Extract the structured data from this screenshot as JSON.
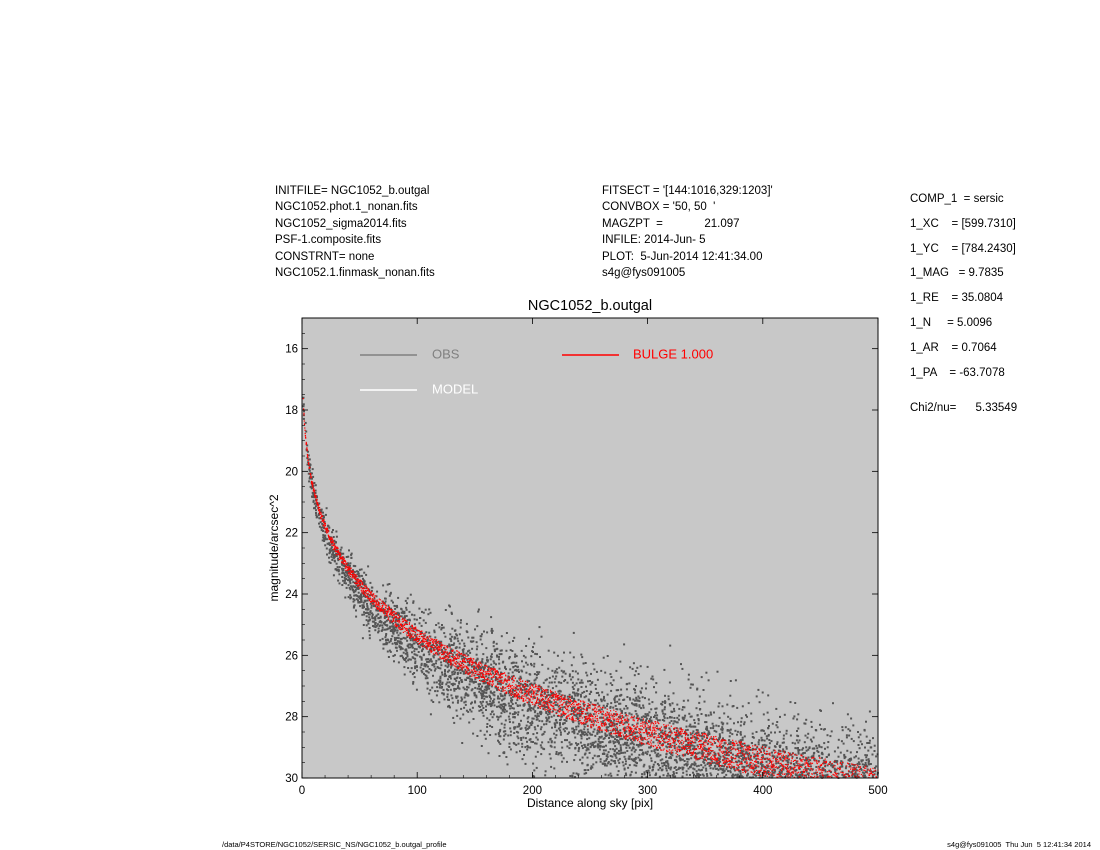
{
  "header_left": [
    "INITFILE= NGC1052_b.outgal",
    "NGC1052.phot.1_nonan.fits",
    "NGC1052_sigma2014.fits",
    "PSF-1.composite.fits",
    "CONSTRNT= none",
    "NGC1052.1.finmask_nonan.fits"
  ],
  "header_mid": [
    "FITSECT = '[144:1016,329:1203]'",
    "CONVBOX = '50, 50  '",
    "MAGZPT  =             21.097",
    "INFILE: 2014-Jun- 5",
    "PLOT:  5-Jun-2014 12:41:34.00",
    "s4g@fys091005"
  ],
  "params": [
    "COMP_1  = sersic",
    "1_XC    = [599.7310]",
    "1_YC    = [784.2430]",
    "1_MAG   = 9.7835",
    "1_RE    = 35.0804",
    "1_N     = 5.0096",
    "1_AR    = 0.7064",
    "1_PA    = -63.7078"
  ],
  "chi2": "Chi2/nu=      5.33549",
  "footer_left": "/data/P4STORE/NGC1052/SERSIC_NS/NGC1052_b.outgal_profile",
  "footer_right": "s4g@fys091005  Thu Jun  5 12:41:34 2014",
  "colors": {
    "plot_background": "#c8c8c8",
    "obs": "#555555",
    "obs_legend": "#808080",
    "model": "#ffffff",
    "bulge": "#ff0000"
  },
  "chart_data": {
    "type": "scatter",
    "title": "NGC1052_b.outgal",
    "xlabel": "Distance along sky [pix]",
    "ylabel": "magnitude/arcsec^2",
    "xlim": [
      0,
      500
    ],
    "ylim": [
      30,
      15
    ],
    "y_inverted": true,
    "grid": false,
    "legend_placement": "top-left",
    "x_ticks": [
      "0",
      "100",
      "200",
      "300",
      "400",
      "500"
    ],
    "y_ticks": [
      "16",
      "18",
      "20",
      "22",
      "24",
      "26",
      "28",
      "30"
    ],
    "series": [
      {
        "name": "OBS",
        "kind": "points",
        "color": "#555555",
        "profile": {
          "model": "sersic",
          "mu_e": 22.9,
          "re_pix": 35.08,
          "n": 5.01,
          "offset": 0.35
        },
        "scatter_mag": {
          "inner": 0.3,
          "outer": 1.6
        }
      },
      {
        "name": "MODEL",
        "kind": "band",
        "color": "#ffffff"
      },
      {
        "name": "BULGE  1.000",
        "kind": "band",
        "color": "#ff0000",
        "profile": {
          "model": "sersic",
          "mu_e": 22.9,
          "re_pix": 35.08,
          "n": 5.01
        },
        "band_width_mag": {
          "inner": 0.1,
          "outer": 1.15
        }
      }
    ]
  }
}
